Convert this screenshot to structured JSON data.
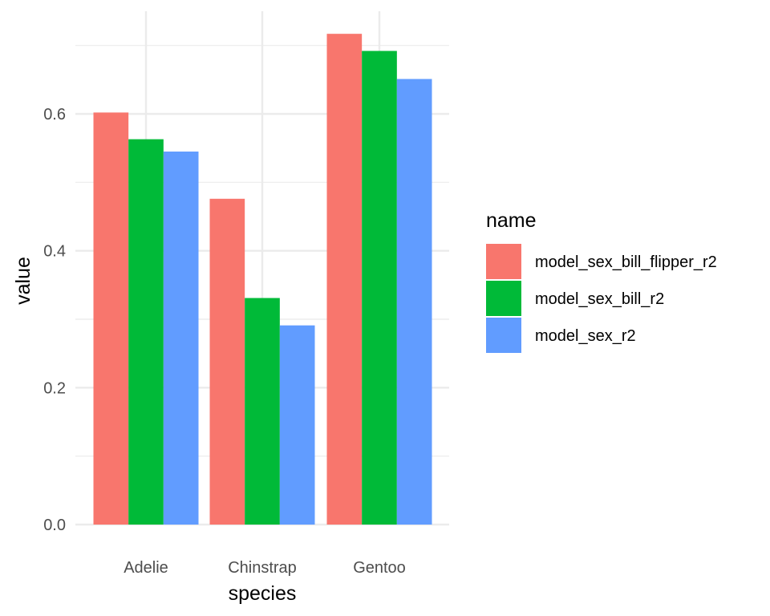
{
  "chart_data": {
    "type": "bar",
    "xlabel": "species",
    "ylabel": "value",
    "categories": [
      "Adelie",
      "Chinstrap",
      "Gentoo"
    ],
    "legend_title": "name",
    "legend_position": "right",
    "ylim": [
      0,
      0.75
    ],
    "yticks": [
      "0.0",
      "0.2",
      "0.4",
      "0.6"
    ],
    "grid": true,
    "series": [
      {
        "name": "model_sex_bill_flipper_r2",
        "color": "#F8766D",
        "values": [
          0.602,
          0.476,
          0.717
        ]
      },
      {
        "name": "model_sex_bill_r2",
        "color": "#00BA38",
        "values": [
          0.563,
          0.331,
          0.692
        ]
      },
      {
        "name": "model_sex_r2",
        "color": "#619CFF",
        "values": [
          0.545,
          0.291,
          0.651
        ]
      }
    ]
  }
}
